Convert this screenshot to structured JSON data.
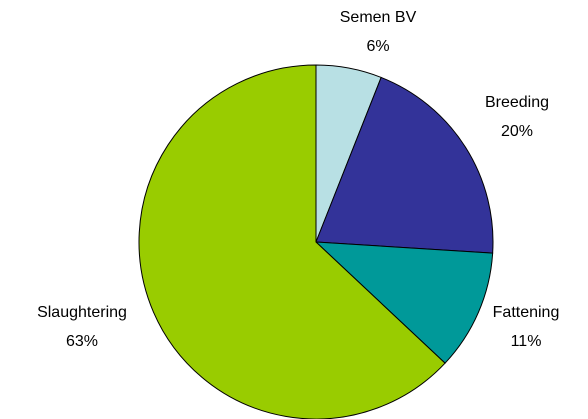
{
  "chart_data": {
    "type": "pie",
    "categories": [
      "Semen BV",
      "Breeding",
      "Fattening",
      "Slaughtering"
    ],
    "values": [
      6,
      20,
      11,
      63
    ],
    "value_labels": [
      "6%",
      "20%",
      "11%",
      "63%"
    ],
    "colors": [
      "#b8e0e4",
      "#333399",
      "#009999",
      "#99cc00"
    ]
  }
}
